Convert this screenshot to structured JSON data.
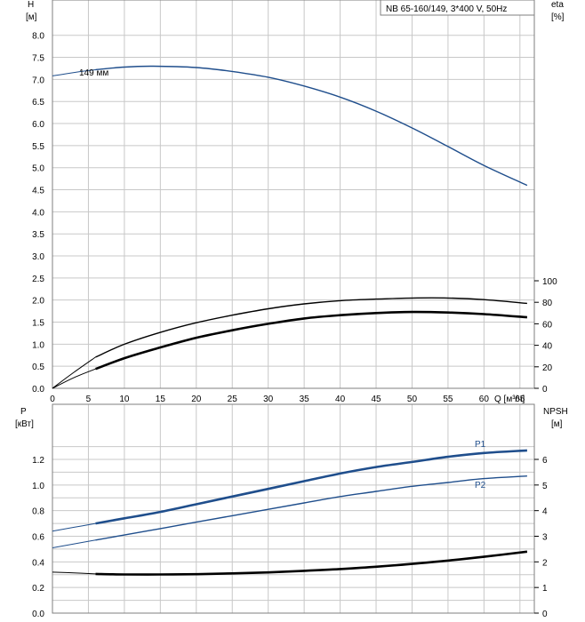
{
  "chart_data": [
    {
      "type": "line",
      "panel": "top",
      "title_box": "NB 65-160/149, 3*400 V, 50Hz",
      "ylabel_left": "H",
      "ylabel_left_unit": "[м]",
      "ylabel_right": "eta",
      "ylabel_right_unit": "[%]",
      "xlabel": "Q [м³/ч]",
      "xlim": [
        0,
        67
      ],
      "ylim_left": [
        0,
        8.8
      ],
      "ylim_right": [
        0,
        100
      ],
      "x_ticks": [
        "0",
        "5",
        "10",
        "15",
        "20",
        "25",
        "30",
        "35",
        "40",
        "45",
        "50",
        "55",
        "60",
        "65"
      ],
      "y_ticks_left": [
        "0.0",
        "0.5",
        "1.0",
        "1.5",
        "2.0",
        "2.5",
        "3.0",
        "3.5",
        "4.0",
        "4.5",
        "5.0",
        "5.5",
        "6.0",
        "6.5",
        "7.0",
        "7.5",
        "8.0"
      ],
      "y_ticks_right": [
        "0",
        "20",
        "40",
        "60",
        "80",
        "100"
      ],
      "grid": true,
      "series": [
        {
          "name": "149 мм",
          "axis": "left",
          "color": "#1f4e8c",
          "x": [
            6,
            10,
            14,
            20,
            25,
            30,
            35,
            40,
            45,
            50,
            55,
            60,
            66
          ],
          "y": [
            7.22,
            7.28,
            7.3,
            7.27,
            7.18,
            7.05,
            6.85,
            6.6,
            6.28,
            5.9,
            5.48,
            5.05,
            4.6
          ],
          "ext_x": [
            0,
            2,
            4,
            6
          ],
          "ext_y": [
            7.08,
            7.13,
            7.18,
            7.22
          ]
        },
        {
          "axis": "right",
          "color": "#000000",
          "x": [
            6,
            10,
            15,
            20,
            25,
            30,
            35,
            40,
            45,
            50,
            55,
            60,
            66
          ],
          "y": [
            29,
            41,
            52,
            61,
            68,
            74,
            78.5,
            81.5,
            83,
            84,
            84,
            82.5,
            79
          ],
          "ext_x": [
            0,
            3,
            6
          ],
          "ext_y": [
            0,
            15,
            29
          ]
        },
        {
          "axis": "right",
          "color": "#000000",
          "bold": true,
          "x": [
            6,
            10,
            15,
            20,
            25,
            30,
            35,
            40,
            45,
            50,
            55,
            60,
            66
          ],
          "y": [
            18,
            28,
            38,
            47,
            54,
            60,
            65,
            68,
            70,
            71,
            70.5,
            69,
            66
          ],
          "ext_x": [
            0,
            3,
            6
          ],
          "ext_y": [
            0,
            10,
            18
          ]
        }
      ]
    },
    {
      "type": "line",
      "panel": "bottom",
      "ylabel_left": "P",
      "ylabel_left_unit": "[кВт]",
      "ylabel_right": "NPSH",
      "ylabel_right_unit": "[м]",
      "xlim": [
        0,
        67
      ],
      "ylim_left": [
        0,
        1.4
      ],
      "ylim_right": [
        0,
        7
      ],
      "y_ticks_left": [
        "0.0",
        "0.2",
        "0.4",
        "0.6",
        "0.8",
        "1.0",
        "1.2"
      ],
      "y_ticks_right": [
        "0",
        "1",
        "2",
        "3",
        "4",
        "5",
        "6"
      ],
      "grid": true,
      "series": [
        {
          "name": "P1",
          "axis": "left",
          "color": "#1f4e8c",
          "bold": true,
          "x": [
            6,
            10,
            15,
            20,
            25,
            30,
            35,
            40,
            45,
            50,
            55,
            60,
            66
          ],
          "y": [
            0.7,
            0.74,
            0.79,
            0.85,
            0.91,
            0.97,
            1.03,
            1.09,
            1.14,
            1.18,
            1.22,
            1.25,
            1.27
          ],
          "ext_x": [
            0,
            3,
            6
          ],
          "ext_y": [
            0.64,
            0.67,
            0.7
          ]
        },
        {
          "name": "P2",
          "axis": "left",
          "color": "#1f4e8c",
          "x": [
            6,
            10,
            15,
            20,
            25,
            30,
            35,
            40,
            45,
            50,
            55,
            60,
            66
          ],
          "y": [
            0.57,
            0.61,
            0.66,
            0.71,
            0.76,
            0.81,
            0.86,
            0.91,
            0.95,
            0.99,
            1.02,
            1.05,
            1.07
          ],
          "ext_x": [
            0,
            3,
            6
          ],
          "ext_y": [
            0.51,
            0.54,
            0.57
          ]
        },
        {
          "axis": "right",
          "color": "#000000",
          "bold": true,
          "x": [
            6,
            10,
            15,
            20,
            25,
            30,
            35,
            40,
            45,
            50,
            55,
            60,
            66
          ],
          "y": [
            1.53,
            1.51,
            1.51,
            1.52,
            1.55,
            1.59,
            1.65,
            1.72,
            1.81,
            1.92,
            2.05,
            2.2,
            2.4
          ],
          "ext_x": [
            0,
            3,
            6
          ],
          "ext_y": [
            1.6,
            1.57,
            1.53
          ]
        }
      ]
    }
  ]
}
